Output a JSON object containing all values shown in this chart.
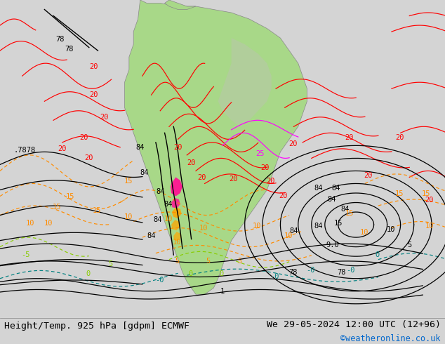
{
  "title_left": "Height/Temp. 925 hPa [gdpm] ECMWF",
  "title_right": "We 29-05-2024 12:00 UTC (12+96)",
  "copyright": "©weatheronline.co.uk",
  "panel_bg": "#d4d4d4",
  "fig_width": 6.34,
  "fig_height": 4.9,
  "dpi": 100,
  "title_fontsize": 9.5,
  "copyright_fontsize": 8.5,
  "copyright_color": "#0066cc"
}
